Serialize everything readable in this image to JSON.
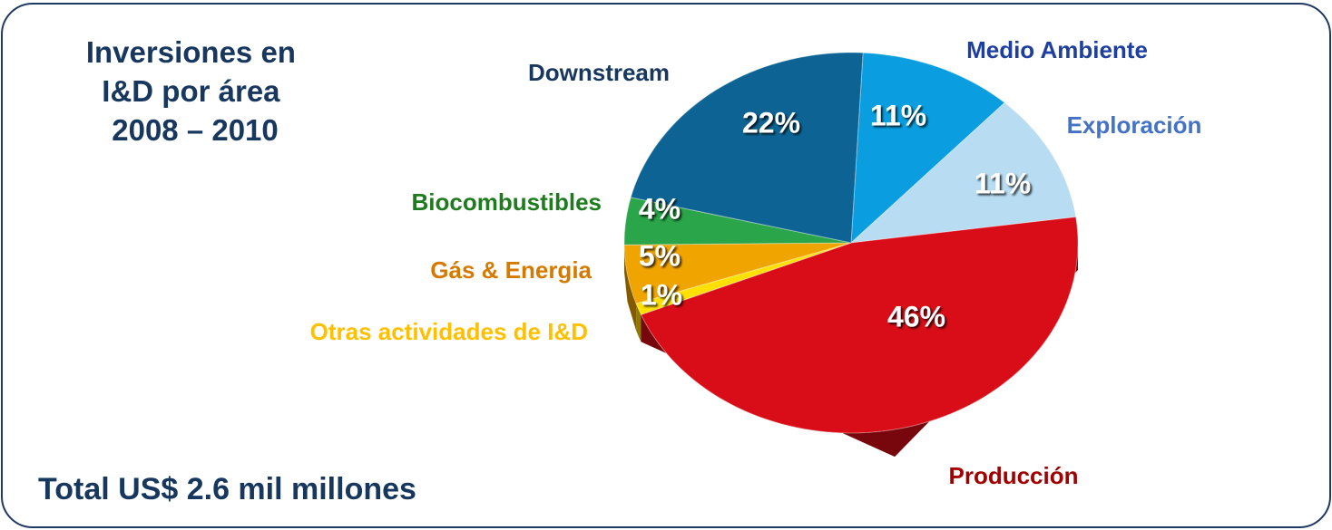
{
  "chart_data": {
    "type": "pie",
    "title": [
      "Inversiones en",
      "I&D por área",
      "2008 – 2010"
    ],
    "annotation": "Total US$ 2.6 mil millones",
    "categories": [
      "Medio Ambiente",
      "Exploración",
      "Producción",
      "Otras actividades de I&D",
      "Gás & Energia",
      "Biocombustibles",
      "Downstream"
    ],
    "values": [
      11,
      11,
      46,
      1,
      5,
      4,
      22
    ],
    "value_labels": [
      "11%",
      "11%",
      "46%",
      "1%",
      "5%",
      "4%",
      "22%"
    ],
    "colors": [
      "#0a9ee0",
      "#b8dcf2",
      "#d90d18",
      "#ffe000",
      "#f0a400",
      "#2aa54a",
      "#0d6494"
    ],
    "label_colors": [
      "#1f3f9f",
      "#4472c4",
      "#a00000",
      "#ffc000",
      "#d47a00",
      "#1e7b1e",
      "#17375e"
    ]
  }
}
